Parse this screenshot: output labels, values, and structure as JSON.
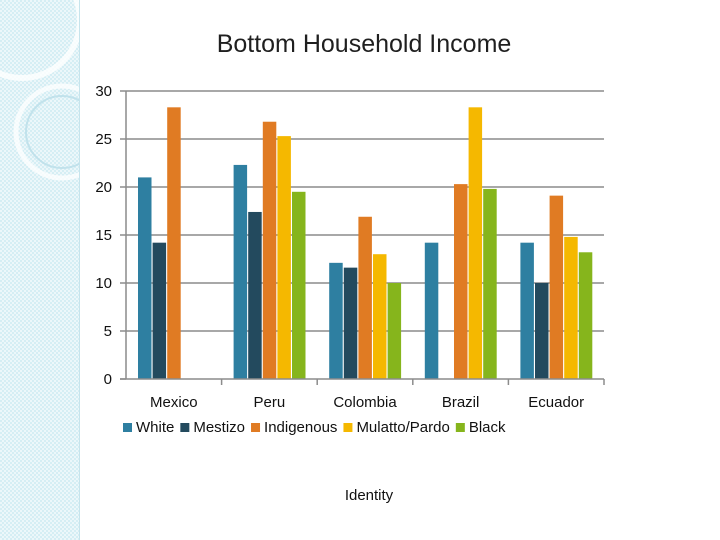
{
  "chart_data": {
    "type": "bar",
    "title": "Bottom Household Income",
    "xlabel": "Identity",
    "ylabel": "",
    "ylim": [
      0,
      30
    ],
    "yticks": [
      0,
      5,
      10,
      15,
      20,
      25,
      30
    ],
    "grid": true,
    "legend_position": "bottom",
    "categories": [
      "Mexico",
      "Peru",
      "Colombia",
      "Brazil",
      "Ecuador"
    ],
    "series": [
      {
        "name": "White",
        "color": "#2e7fa1",
        "values": [
          21.0,
          22.3,
          12.1,
          14.2,
          14.2
        ]
      },
      {
        "name": "Mestizo",
        "color": "#234a5e",
        "values": [
          14.2,
          17.4,
          11.6,
          null,
          10.0
        ]
      },
      {
        "name": "Indigenous",
        "color": "#e07b23",
        "values": [
          28.3,
          26.8,
          16.9,
          20.3,
          19.1
        ]
      },
      {
        "name": "Mulatto/Pardo",
        "color": "#f5b800",
        "values": [
          null,
          25.3,
          13.0,
          28.3,
          14.8
        ]
      },
      {
        "name": "Black",
        "color": "#86b51c",
        "values": [
          null,
          19.5,
          10.0,
          19.8,
          13.2
        ]
      }
    ]
  }
}
